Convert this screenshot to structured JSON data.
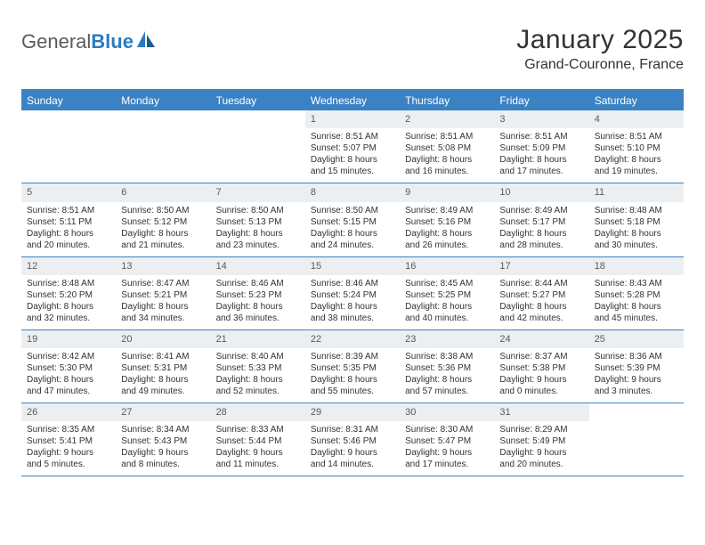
{
  "brand": {
    "name_part1": "General",
    "name_part2": "Blue"
  },
  "title": "January 2025",
  "location": "Grand-Couronne, France",
  "colors": {
    "header_bg": "#3b82c4",
    "header_text": "#ffffff",
    "daynum_bg": "#eceff2",
    "daynum_text": "#5a5a5a",
    "body_text": "#333333",
    "rule": "#3b82c4",
    "page_bg": "#ffffff",
    "logo_gray": "#5a5a5a",
    "logo_blue": "#2b7bbf"
  },
  "day_labels": [
    "Sunday",
    "Monday",
    "Tuesday",
    "Wednesday",
    "Thursday",
    "Friday",
    "Saturday"
  ],
  "weeks": [
    [
      {
        "n": "",
        "lines": []
      },
      {
        "n": "",
        "lines": []
      },
      {
        "n": "",
        "lines": []
      },
      {
        "n": "1",
        "lines": [
          "Sunrise: 8:51 AM",
          "Sunset: 5:07 PM",
          "Daylight: 8 hours",
          "and 15 minutes."
        ]
      },
      {
        "n": "2",
        "lines": [
          "Sunrise: 8:51 AM",
          "Sunset: 5:08 PM",
          "Daylight: 8 hours",
          "and 16 minutes."
        ]
      },
      {
        "n": "3",
        "lines": [
          "Sunrise: 8:51 AM",
          "Sunset: 5:09 PM",
          "Daylight: 8 hours",
          "and 17 minutes."
        ]
      },
      {
        "n": "4",
        "lines": [
          "Sunrise: 8:51 AM",
          "Sunset: 5:10 PM",
          "Daylight: 8 hours",
          "and 19 minutes."
        ]
      }
    ],
    [
      {
        "n": "5",
        "lines": [
          "Sunrise: 8:51 AM",
          "Sunset: 5:11 PM",
          "Daylight: 8 hours",
          "and 20 minutes."
        ]
      },
      {
        "n": "6",
        "lines": [
          "Sunrise: 8:50 AM",
          "Sunset: 5:12 PM",
          "Daylight: 8 hours",
          "and 21 minutes."
        ]
      },
      {
        "n": "7",
        "lines": [
          "Sunrise: 8:50 AM",
          "Sunset: 5:13 PM",
          "Daylight: 8 hours",
          "and 23 minutes."
        ]
      },
      {
        "n": "8",
        "lines": [
          "Sunrise: 8:50 AM",
          "Sunset: 5:15 PM",
          "Daylight: 8 hours",
          "and 24 minutes."
        ]
      },
      {
        "n": "9",
        "lines": [
          "Sunrise: 8:49 AM",
          "Sunset: 5:16 PM",
          "Daylight: 8 hours",
          "and 26 minutes."
        ]
      },
      {
        "n": "10",
        "lines": [
          "Sunrise: 8:49 AM",
          "Sunset: 5:17 PM",
          "Daylight: 8 hours",
          "and 28 minutes."
        ]
      },
      {
        "n": "11",
        "lines": [
          "Sunrise: 8:48 AM",
          "Sunset: 5:18 PM",
          "Daylight: 8 hours",
          "and 30 minutes."
        ]
      }
    ],
    [
      {
        "n": "12",
        "lines": [
          "Sunrise: 8:48 AM",
          "Sunset: 5:20 PM",
          "Daylight: 8 hours",
          "and 32 minutes."
        ]
      },
      {
        "n": "13",
        "lines": [
          "Sunrise: 8:47 AM",
          "Sunset: 5:21 PM",
          "Daylight: 8 hours",
          "and 34 minutes."
        ]
      },
      {
        "n": "14",
        "lines": [
          "Sunrise: 8:46 AM",
          "Sunset: 5:23 PM",
          "Daylight: 8 hours",
          "and 36 minutes."
        ]
      },
      {
        "n": "15",
        "lines": [
          "Sunrise: 8:46 AM",
          "Sunset: 5:24 PM",
          "Daylight: 8 hours",
          "and 38 minutes."
        ]
      },
      {
        "n": "16",
        "lines": [
          "Sunrise: 8:45 AM",
          "Sunset: 5:25 PM",
          "Daylight: 8 hours",
          "and 40 minutes."
        ]
      },
      {
        "n": "17",
        "lines": [
          "Sunrise: 8:44 AM",
          "Sunset: 5:27 PM",
          "Daylight: 8 hours",
          "and 42 minutes."
        ]
      },
      {
        "n": "18",
        "lines": [
          "Sunrise: 8:43 AM",
          "Sunset: 5:28 PM",
          "Daylight: 8 hours",
          "and 45 minutes."
        ]
      }
    ],
    [
      {
        "n": "19",
        "lines": [
          "Sunrise: 8:42 AM",
          "Sunset: 5:30 PM",
          "Daylight: 8 hours",
          "and 47 minutes."
        ]
      },
      {
        "n": "20",
        "lines": [
          "Sunrise: 8:41 AM",
          "Sunset: 5:31 PM",
          "Daylight: 8 hours",
          "and 49 minutes."
        ]
      },
      {
        "n": "21",
        "lines": [
          "Sunrise: 8:40 AM",
          "Sunset: 5:33 PM",
          "Daylight: 8 hours",
          "and 52 minutes."
        ]
      },
      {
        "n": "22",
        "lines": [
          "Sunrise: 8:39 AM",
          "Sunset: 5:35 PM",
          "Daylight: 8 hours",
          "and 55 minutes."
        ]
      },
      {
        "n": "23",
        "lines": [
          "Sunrise: 8:38 AM",
          "Sunset: 5:36 PM",
          "Daylight: 8 hours",
          "and 57 minutes."
        ]
      },
      {
        "n": "24",
        "lines": [
          "Sunrise: 8:37 AM",
          "Sunset: 5:38 PM",
          "Daylight: 9 hours",
          "and 0 minutes."
        ]
      },
      {
        "n": "25",
        "lines": [
          "Sunrise: 8:36 AM",
          "Sunset: 5:39 PM",
          "Daylight: 9 hours",
          "and 3 minutes."
        ]
      }
    ],
    [
      {
        "n": "26",
        "lines": [
          "Sunrise: 8:35 AM",
          "Sunset: 5:41 PM",
          "Daylight: 9 hours",
          "and 5 minutes."
        ]
      },
      {
        "n": "27",
        "lines": [
          "Sunrise: 8:34 AM",
          "Sunset: 5:43 PM",
          "Daylight: 9 hours",
          "and 8 minutes."
        ]
      },
      {
        "n": "28",
        "lines": [
          "Sunrise: 8:33 AM",
          "Sunset: 5:44 PM",
          "Daylight: 9 hours",
          "and 11 minutes."
        ]
      },
      {
        "n": "29",
        "lines": [
          "Sunrise: 8:31 AM",
          "Sunset: 5:46 PM",
          "Daylight: 9 hours",
          "and 14 minutes."
        ]
      },
      {
        "n": "30",
        "lines": [
          "Sunrise: 8:30 AM",
          "Sunset: 5:47 PM",
          "Daylight: 9 hours",
          "and 17 minutes."
        ]
      },
      {
        "n": "31",
        "lines": [
          "Sunrise: 8:29 AM",
          "Sunset: 5:49 PM",
          "Daylight: 9 hours",
          "and 20 minutes."
        ]
      },
      {
        "n": "",
        "lines": []
      }
    ]
  ]
}
